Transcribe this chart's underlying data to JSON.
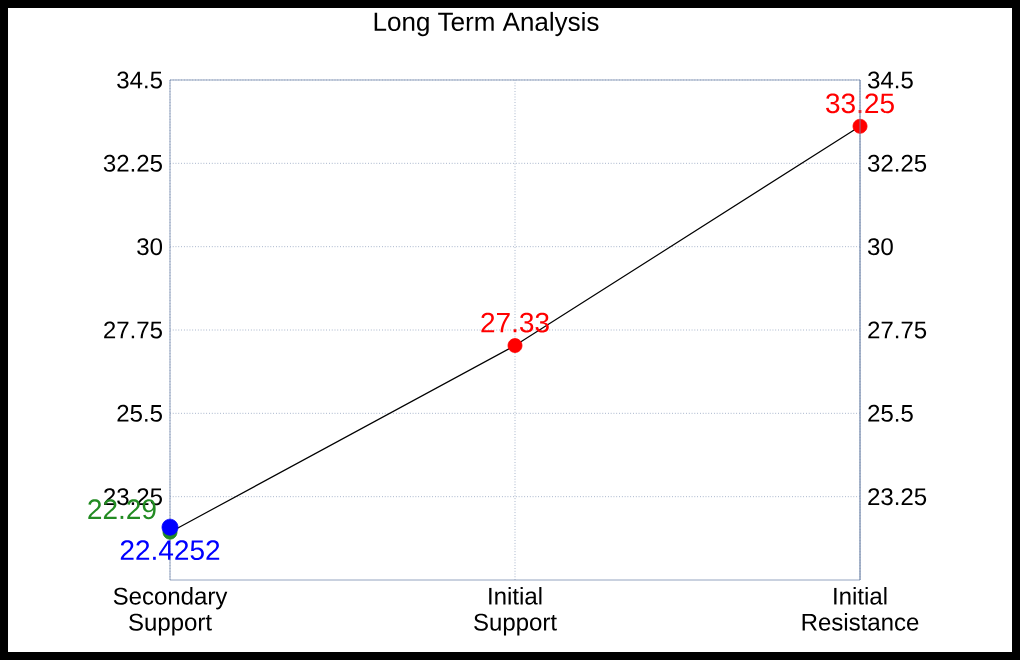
{
  "chart_data": {
    "type": "line",
    "title": "Long Term Analysis",
    "categories": [
      "Secondary Support",
      "Initial Support",
      "Initial Resistance"
    ],
    "ylim": [
      21,
      34.5
    ],
    "yticks": [
      23.25,
      25.5,
      27.75,
      30,
      32.25,
      34.5
    ],
    "y2lim": [
      21,
      34.5
    ],
    "y2ticks": [
      23.25,
      25.5,
      27.75,
      30,
      32.25,
      34.5
    ],
    "grid": true,
    "data_labels": true,
    "marker": "circle",
    "series": [
      {
        "color": "#000000",
        "colors": [
          "#228b22",
          "#ff0000",
          "#ff0000"
        ],
        "values": [
          22.29,
          27.33,
          33.25
        ]
      },
      {
        "type": "scatter",
        "color": "#0000ff",
        "values": [
          22.4252,
          null,
          null
        ]
      }
    ]
  }
}
